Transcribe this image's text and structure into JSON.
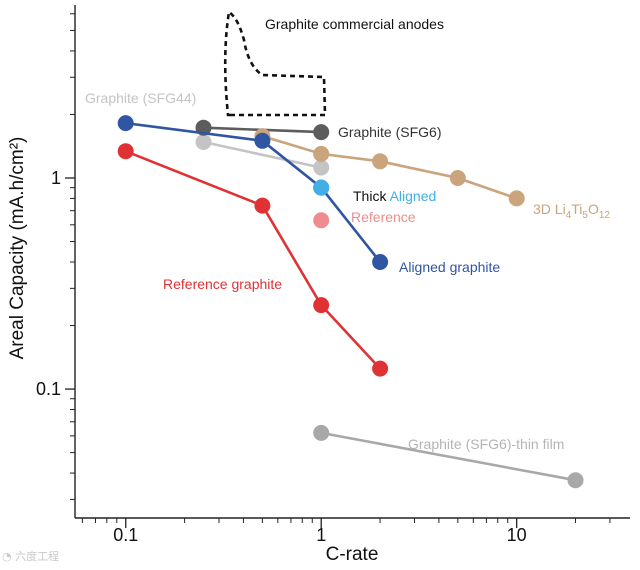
{
  "chart_data": {
    "type": "line",
    "title": "",
    "xlabel": "C-rate",
    "ylabel": "Areal Capacity (mA.h/cm²)",
    "xscale": "log",
    "yscale": "log",
    "xlim": [
      0.055,
      38
    ],
    "ylim": [
      0.0245,
      6.6
    ],
    "x_ticks": [
      {
        "v": 0.1,
        "label": "0.1"
      },
      {
        "v": 1,
        "label": "1"
      },
      {
        "v": 10,
        "label": "10"
      }
    ],
    "y_ticks": [
      {
        "v": 0.1,
        "label": "0.1"
      },
      {
        "v": 1,
        "label": "1"
      }
    ],
    "series": [
      {
        "name": "Graphite (SFG44)",
        "color": "#c4c4c4",
        "x": [
          0.25,
          1
        ],
        "y": [
          1.48,
          1.12
        ]
      },
      {
        "name": "Graphite (SFG6)",
        "color": "#5d5d5d",
        "x": [
          0.25,
          1
        ],
        "y": [
          1.73,
          1.65
        ]
      },
      {
        "name": "3D Li4Ti5O12",
        "color": "#c9a47c",
        "x": [
          0.5,
          1,
          2,
          5,
          10
        ],
        "y": [
          1.58,
          1.3,
          1.2,
          1.0,
          0.8
        ]
      },
      {
        "name": "Aligned graphite",
        "color": "#2f55a3",
        "x": [
          0.1,
          0.5,
          1,
          2
        ],
        "y": [
          1.82,
          1.5,
          0.9,
          0.4
        ]
      },
      {
        "name": "Thick Aligned",
        "color": "#41aee6",
        "x": [
          1
        ],
        "y": [
          0.9
        ]
      },
      {
        "name": "Reference",
        "color": "#ef8c8f",
        "x": [
          1
        ],
        "y": [
          0.63
        ]
      },
      {
        "name": "Reference graphite",
        "color": "#e03234",
        "x": [
          0.1,
          0.5,
          1,
          2
        ],
        "y": [
          1.34,
          0.74,
          0.25,
          0.125
        ]
      },
      {
        "name": "Graphite (SFG6)-thin film",
        "color": "#a8a8a8",
        "x": [
          1,
          20
        ],
        "y": [
          0.062,
          0.037
        ]
      }
    ],
    "annotations": [
      {
        "text": "Graphite commercial anodes",
        "color": "#111111"
      },
      {
        "text": "Graphite (SFG44)",
        "color": "#c4c4c4"
      },
      {
        "text": "Graphite (SFG6)",
        "color": "#333333"
      },
      {
        "text_parts": [
          "Thick ",
          "Aligned"
        ],
        "colors": [
          "#111111",
          "#41aee6"
        ]
      },
      {
        "text": "Reference",
        "color": "#ef8c8f"
      },
      {
        "text": "Aligned graphite",
        "color": "#2f55a3"
      },
      {
        "text": "Reference graphite",
        "color": "#e03234"
      },
      {
        "text": "Graphite (SFG6)-thin film",
        "color": "#b4b4b4"
      },
      {
        "text_parts": [
          "3D Li",
          "4",
          "Ti",
          "5",
          "O",
          "12"
        ],
        "color": "#c9a47c"
      }
    ],
    "region": {
      "name": "Graphite commercial anodes",
      "style": "dashed"
    }
  },
  "watermark": "六度工程"
}
